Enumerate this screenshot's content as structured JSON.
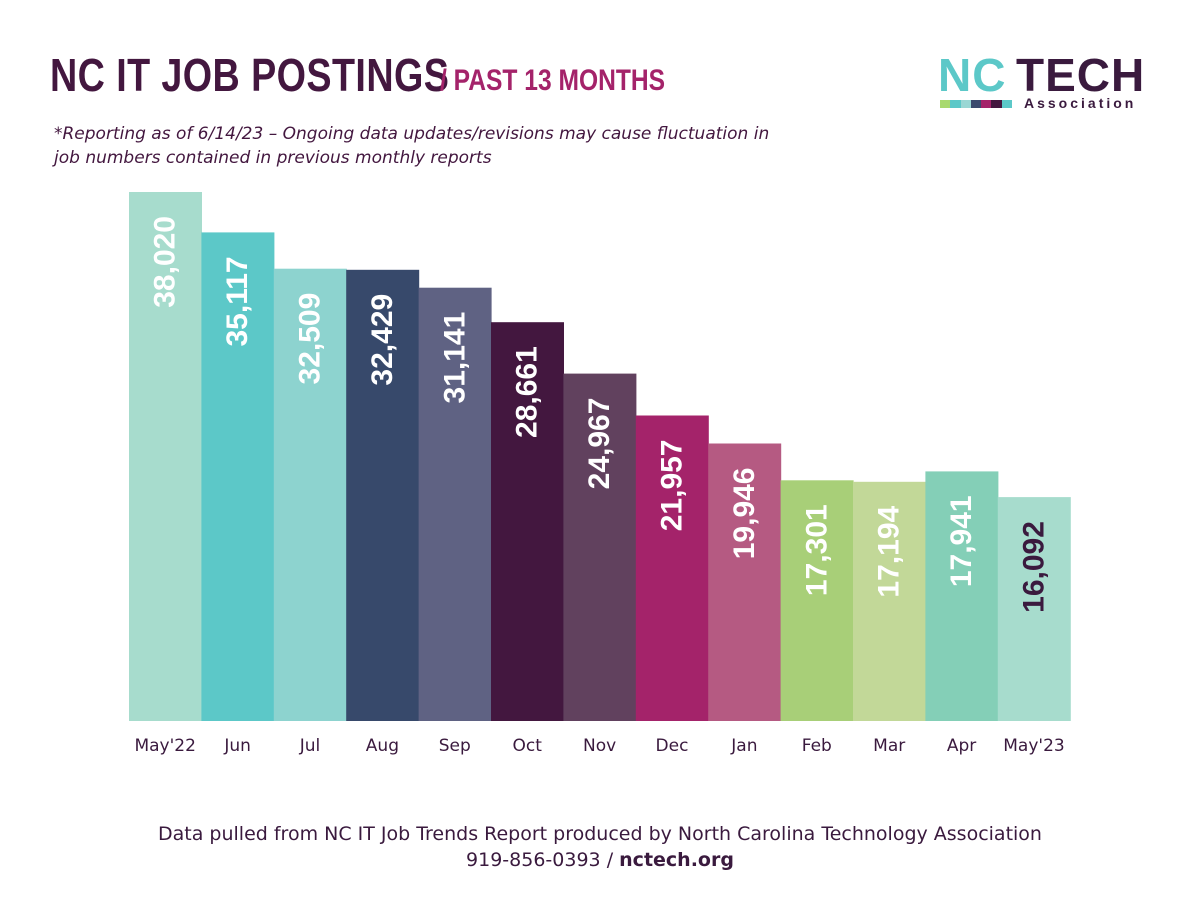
{
  "header": {
    "title": "NC IT JOB POSTINGS",
    "subtitle": "/ PAST 13 MONTHS",
    "note": "*Reporting as of 6/14/23 – Ongoing data updates/revisions may cause fluctuation in job numbers contained in previous monthly reports"
  },
  "logo": {
    "nc": "NC",
    "tech": "TECH",
    "association": "Association",
    "strip_colors": [
      "#a8d96e",
      "#5cc8c8",
      "#9ad7d4",
      "#3b4a6e",
      "#a4236a",
      "#43173f",
      "#5cc8c8"
    ]
  },
  "footer": {
    "line1": "Data pulled from NC IT Job Trends Report produced by North Carolina Technology Association",
    "phone": "919-856-0393",
    "separator": "/",
    "website": "nctech.org"
  },
  "chart_data": {
    "type": "bar",
    "title": "NC IT JOB POSTINGS / PAST 13 MONTHS",
    "xlabel": "",
    "ylabel": "",
    "ylim": [
      0,
      38020
    ],
    "grid": false,
    "legend": "none",
    "categories": [
      "May'22",
      "Jun",
      "Jul",
      "Aug",
      "Sep",
      "Oct",
      "Nov",
      "Dec",
      "Jan",
      "Feb",
      "Mar",
      "Apr",
      "May'23"
    ],
    "values": [
      38020,
      35117,
      32509,
      32429,
      31141,
      28661,
      24967,
      21957,
      19946,
      17301,
      17194,
      17941,
      16092
    ],
    "value_labels": [
      "38,020",
      "35,117",
      "32,509",
      "32,429",
      "31,141",
      "28,661",
      "24,967",
      "21,957",
      "19,946",
      "17,301",
      "17,194",
      "17,941",
      "16,092"
    ],
    "bar_colors": [
      "#a7dccd",
      "#5cc8c8",
      "#8dd3cf",
      "#37496b",
      "#5f6283",
      "#43173f",
      "#61415e",
      "#a4236a",
      "#b55a82",
      "#a8cf78",
      "#c2d898",
      "#84cfb7",
      "#a7dccd"
    ],
    "label_colors": [
      "#ffffff",
      "#ffffff",
      "#ffffff",
      "#ffffff",
      "#ffffff",
      "#ffffff",
      "#ffffff",
      "#ffffff",
      "#ffffff",
      "#ffffff",
      "#ffffff",
      "#ffffff",
      "#3a1a3e"
    ]
  }
}
